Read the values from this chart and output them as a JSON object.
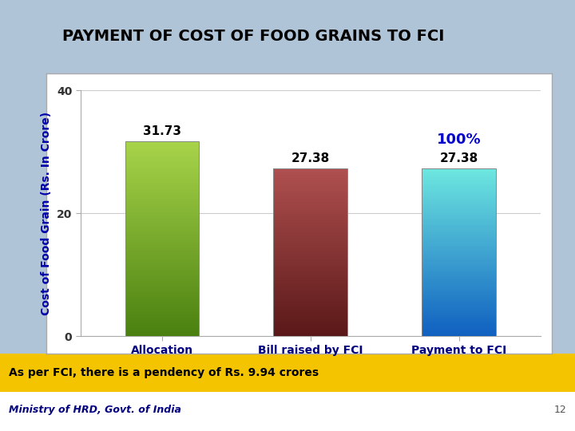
{
  "title": "PAYMENT OF COST OF FOOD GRAINS TO FCI",
  "categories": [
    "Allocation",
    "Bill raised by FCI",
    "Payment to FCI"
  ],
  "values": [
    31.73,
    27.38,
    27.38
  ],
  "value_labels": [
    "31.73",
    "27.38",
    "27.38"
  ],
  "bar_colors_top": [
    "#a8d44a",
    "#b05050",
    "#6ee8e0"
  ],
  "bar_colors_bottom": [
    "#4a8010",
    "#5a1818",
    "#1060c0"
  ],
  "ylabel": "Cost of Food Grain (Rs. In Crore)",
  "ylim": [
    0,
    40
  ],
  "yticks": [
    0,
    20,
    40
  ],
  "header_bg": "#b0c4d8",
  "chart_bg": "#ffffff",
  "footer_bg": "#f5c400",
  "footer_text": "As per FCI, there is a pendency of Rs. 9.94 crores",
  "bottom_text": "Ministry of HRD, Govt. of India",
  "page_number": "12",
  "annotation_100": "100%",
  "annotation_100_color": "#0000cc",
  "title_color": "#000000",
  "ylabel_color": "#0000aa",
  "xlabel_color": "#000080",
  "value_label_color": "#000000",
  "grid_color": "#cccccc",
  "bar_width": 0.5
}
